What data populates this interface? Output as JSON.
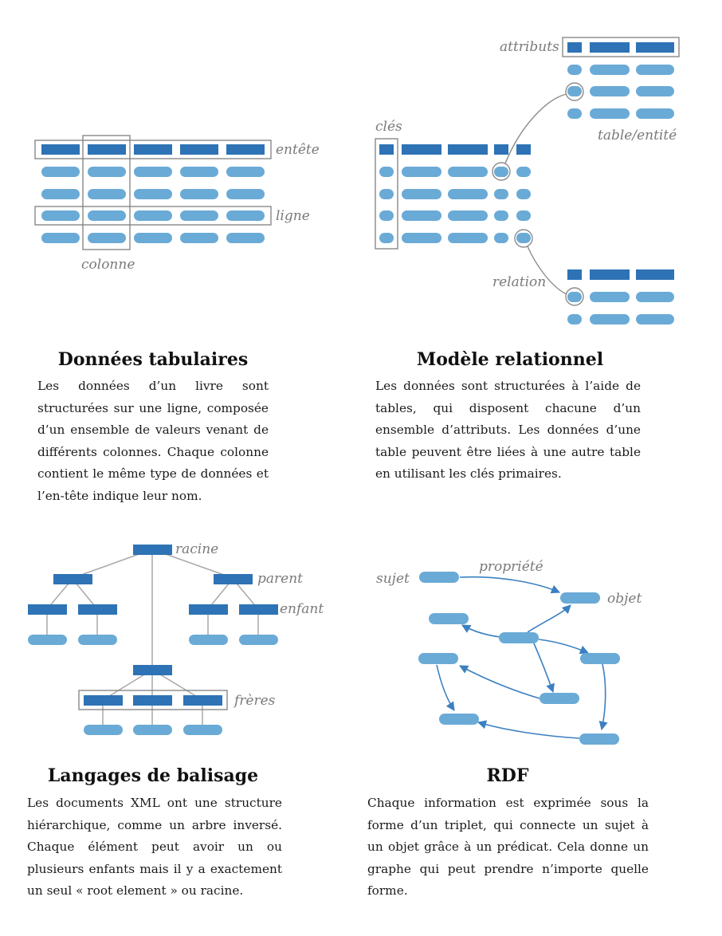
{
  "colors": {
    "header_bar": "#2e73b5",
    "cell_pill": "#6aaad6",
    "box_stroke": "#7f7f7f",
    "connector": "#9a9a9a",
    "rdf_arrow": "#3b80c1",
    "label_text": "#7a7a7a"
  },
  "tabular": {
    "labels": {
      "header": "entête",
      "row": "ligne",
      "column": "colonne"
    },
    "title": "Données tabulaires",
    "text": "Les données d’un livre sont structurées sur une ligne, composée d’un ensemble de valeurs venant de différents colonnes. Chaque colonne contient le même type de données et l’en-tête indique leur nom."
  },
  "relational": {
    "labels": {
      "attributes": "attributs",
      "table": "table/entité",
      "keys": "clés",
      "relation": "relation"
    },
    "title": "Modèle relationnel",
    "text": "Les données sont structurées à l’aide de tables, qui disposent chacune d’un ensemble d’attributs. Les données d’une table peuvent être liées à une autre table en utilisant les clés primaires."
  },
  "markup": {
    "labels": {
      "root": "racine",
      "parent": "parent",
      "child": "enfant",
      "siblings": "frères"
    },
    "title": "Langages de balisage",
    "text": "Les documents XML ont une structure hiérarchique, comme un arbre inversé. Chaque élément peut avoir un ou plusieurs enfants mais il y a exactement un seul « root element » ou racine."
  },
  "rdf": {
    "labels": {
      "subject": "sujet",
      "property": "propriété",
      "object": "objet"
    },
    "title": "RDF",
    "text": "Chaque information est exprimée sous la forme d’un triplet, qui connecte un sujet à un objet grâce à un prédicat. Cela donne un graphe qui peut prendre n’importe quelle forme."
  }
}
